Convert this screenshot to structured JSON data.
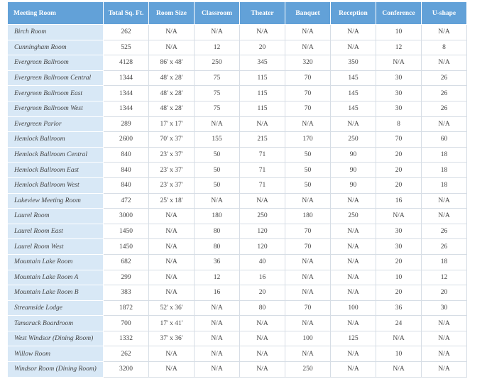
{
  "table": {
    "header": [
      "Meeting Room",
      "Total Sq. Ft.",
      "Room Size",
      "Classroom",
      "Theater",
      "Banquet",
      "Reception",
      "Conference",
      "U-shape"
    ],
    "rows": [
      [
        "Birch Room",
        262,
        "N/A",
        "N/A",
        "N/A",
        "N/A",
        "N/A",
        10,
        "N/A"
      ],
      [
        "Cunningham Room",
        525,
        "N/A",
        12,
        20,
        "N/A",
        "N/A",
        12,
        8
      ],
      [
        "Evergreen Ballroom",
        4128,
        "86' x 48'",
        250,
        345,
        320,
        350,
        "N/A",
        "N/A"
      ],
      [
        "Evergreen Ballroom Central",
        1344,
        "48' x 28'",
        75,
        115,
        70,
        145,
        30,
        26
      ],
      [
        "Evergreen Ballroom East",
        1344,
        "48' x 28'",
        75,
        115,
        70,
        145,
        30,
        26
      ],
      [
        "Evergreen Ballroom West",
        1344,
        "48' x 28'",
        75,
        115,
        70,
        145,
        30,
        26
      ],
      [
        "Evergreen Parlor",
        289,
        "17' x 17'",
        "N/A",
        "N/A",
        "N/A",
        "N/A",
        8,
        "N/A"
      ],
      [
        "Hemlock Ballroom",
        2600,
        "70' x 37'",
        155,
        215,
        170,
        250,
        70,
        60
      ],
      [
        "Hemlock Ballroom Central",
        840,
        "23' x 37'",
        50,
        71,
        50,
        90,
        20,
        18
      ],
      [
        "Hemlock Ballroom East",
        840,
        "23' x 37'",
        50,
        71,
        50,
        90,
        20,
        18
      ],
      [
        "Hemlock Ballroom West",
        840,
        "23' x 37'",
        50,
        71,
        50,
        90,
        20,
        18
      ],
      [
        "Lakeview Meeting Room",
        472,
        "25' x 18'",
        "N/A",
        "N/A",
        "N/A",
        "N/A",
        16,
        "N/A"
      ],
      [
        "Laurel Room",
        3000,
        "N/A",
        180,
        250,
        180,
        250,
        "N/A",
        "N/A"
      ],
      [
        "Laurel Room East",
        1450,
        "N/A",
        80,
        120,
        70,
        "N/A",
        30,
        26
      ],
      [
        "Laurel Room West",
        1450,
        "N/A",
        80,
        120,
        70,
        "N/A",
        30,
        26
      ],
      [
        "Mountain Lake Room",
        682,
        "N/A",
        36,
        40,
        "N/A",
        "N/A",
        20,
        18
      ],
      [
        "Mountain Lake Room A",
        299,
        "N/A",
        12,
        16,
        "N/A",
        "N/A",
        10,
        12
      ],
      [
        "Mountain Lake Room B",
        383,
        "N/A",
        16,
        20,
        "N/A",
        "N/A",
        20,
        20
      ],
      [
        "Streamside Lodge",
        1872,
        "52' x 36'",
        "N/A",
        80,
        70,
        100,
        36,
        30
      ],
      [
        "Tamarack Boardroom",
        700,
        "17' x 41'",
        "N/A",
        "N/A",
        "N/A",
        "N/A",
        24,
        "N/A"
      ],
      [
        "West Windsor (Dining Room)",
        1332,
        "37' x 36'",
        "N/A",
        "N/A",
        100,
        125,
        "N/A",
        "N/A"
      ],
      [
        "Willow Room",
        262,
        "N/A",
        "N/A",
        "N/A",
        "N/A",
        "N/A",
        10,
        "N/A"
      ],
      [
        "Windsor Room (Dining Room)",
        3200,
        "N/A",
        "N/A",
        "N/A",
        250,
        "N/A",
        "N/A",
        "N/A"
      ]
    ]
  }
}
